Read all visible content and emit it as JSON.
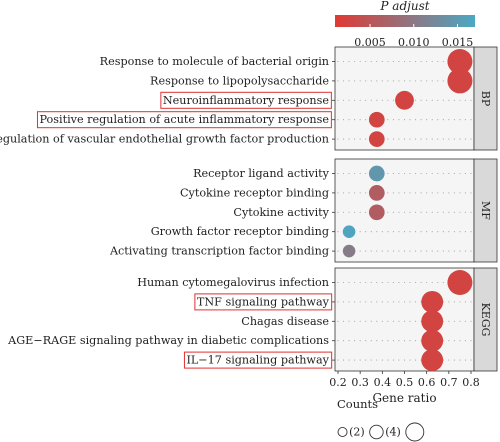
{
  "chart_data": {
    "type": "scatter",
    "colorbar": {
      "title": "P adjust",
      "ticks": [
        "0.005",
        "0.010",
        "0.015"
      ],
      "tick_values": [
        0.005,
        0.01,
        0.015
      ],
      "range": [
        0.001,
        0.017
      ],
      "low_color": "#e03a33",
      "high_color": "#4aa8c4"
    },
    "xaxis": {
      "label": "Gene ratio",
      "ticks": [
        "0.2",
        "0.3",
        "0.4",
        "0.5",
        "0.6",
        "0.7",
        "0.8"
      ],
      "range": [
        0.2,
        0.8
      ]
    },
    "size_legend": {
      "title": "Counts",
      "items": [
        {
          "label": "(2)",
          "count": 2
        },
        {
          "label": "(4)",
          "count": 4
        }
      ],
      "extra_circle_count": 6
    },
    "panels": [
      {
        "name": "BP",
        "terms": [
          {
            "label": "Response to molecule of bacterial origin",
            "gene_ratio": 0.75,
            "p_adjust": 0.0025,
            "count": 6,
            "highlight": false
          },
          {
            "label": "Response to lipopolysaccharide",
            "gene_ratio": 0.75,
            "p_adjust": 0.0025,
            "count": 6,
            "highlight": false
          },
          {
            "label": "Neuroinflammatory response",
            "gene_ratio": 0.5,
            "p_adjust": 0.0025,
            "count": 4,
            "highlight": true
          },
          {
            "label": "Positive regulation of acute inflammatory response",
            "gene_ratio": 0.375,
            "p_adjust": 0.0025,
            "count": 3,
            "highlight": true
          },
          {
            "label": "Positive regulation of vascular endothelial growth factor production",
            "gene_ratio": 0.375,
            "p_adjust": 0.0025,
            "count": 3,
            "highlight": false
          }
        ]
      },
      {
        "name": "MF",
        "terms": [
          {
            "label": "Receptor ligand activity",
            "gene_ratio": 0.375,
            "p_adjust": 0.0145,
            "count": 3,
            "highlight": false
          },
          {
            "label": "Cytokine receptor binding",
            "gene_ratio": 0.375,
            "p_adjust": 0.006,
            "count": 3,
            "highlight": false
          },
          {
            "label": "Cytokine activity",
            "gene_ratio": 0.375,
            "p_adjust": 0.006,
            "count": 3,
            "highlight": false
          },
          {
            "label": "Growth factor receptor binding",
            "gene_ratio": 0.25,
            "p_adjust": 0.0165,
            "count": 2,
            "highlight": false
          },
          {
            "label": "Activating transcription factor binding",
            "gene_ratio": 0.25,
            "p_adjust": 0.0105,
            "count": 2,
            "highlight": false
          }
        ]
      },
      {
        "name": "KEGG",
        "terms": [
          {
            "label": "Human cytomegalovirus infection",
            "gene_ratio": 0.75,
            "p_adjust": 0.0025,
            "count": 6,
            "highlight": false
          },
          {
            "label": "TNF signaling pathway",
            "gene_ratio": 0.625,
            "p_adjust": 0.0025,
            "count": 5,
            "highlight": true
          },
          {
            "label": "Chagas disease",
            "gene_ratio": 0.625,
            "p_adjust": 0.0025,
            "count": 5,
            "highlight": false
          },
          {
            "label": "AGE−RAGE signaling pathway in diabetic complications",
            "gene_ratio": 0.625,
            "p_adjust": 0.0025,
            "count": 5,
            "highlight": false
          },
          {
            "label": "IL−17 signaling pathway",
            "gene_ratio": 0.625,
            "p_adjust": 0.0025,
            "count": 5,
            "highlight": true
          }
        ]
      }
    ],
    "grid": true,
    "highlight_color": "#e03030",
    "panel_background": "#f5f5f5",
    "strip_background": "#d9d9d9"
  }
}
